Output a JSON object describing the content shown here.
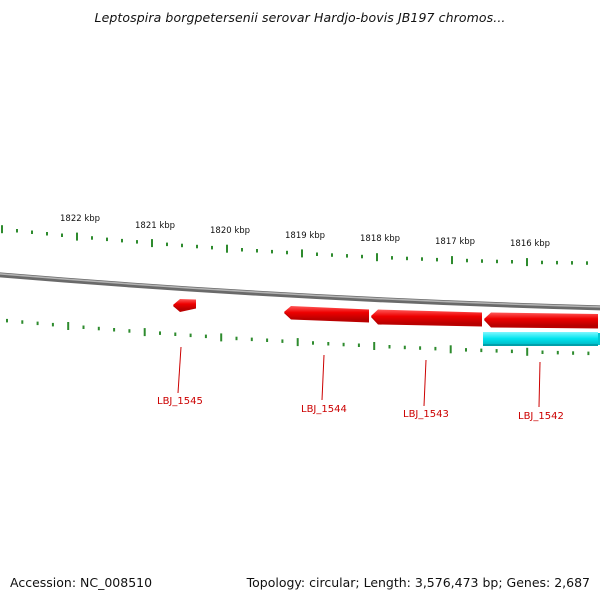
{
  "title": "Leptospira borgpetersenii serovar Hardjo-bovis JB197 chromos...",
  "footer": {
    "accession": "Accession: NC_008510",
    "summary": "Topology: circular; Length: 3,576,473 bp; Genes: 2,687"
  },
  "ruler": {
    "unit": "kbp",
    "labels": [
      "1822 kbp",
      "1821 kbp",
      "1820 kbp",
      "1819 kbp",
      "1818 kbp",
      "1817 kbp",
      "1816 kbp"
    ],
    "tick_color": "#2e8b2e"
  },
  "genes": [
    {
      "label": "LBJ_1545",
      "strand": "reverse",
      "color": "#ee0000"
    },
    {
      "label": "LBJ_1544",
      "strand": "reverse",
      "color": "#ee0000"
    },
    {
      "label": "LBJ_1543",
      "strand": "reverse",
      "color": "#ee0000"
    },
    {
      "label": "LBJ_1542",
      "strand": "reverse",
      "color": "#ee0000"
    }
  ],
  "feature_extra": {
    "color": "#00e5ee"
  },
  "colors": {
    "backbone": "#808080",
    "gene": "#ee0000",
    "label": "#cc0000",
    "tick": "#2e8b2e"
  }
}
